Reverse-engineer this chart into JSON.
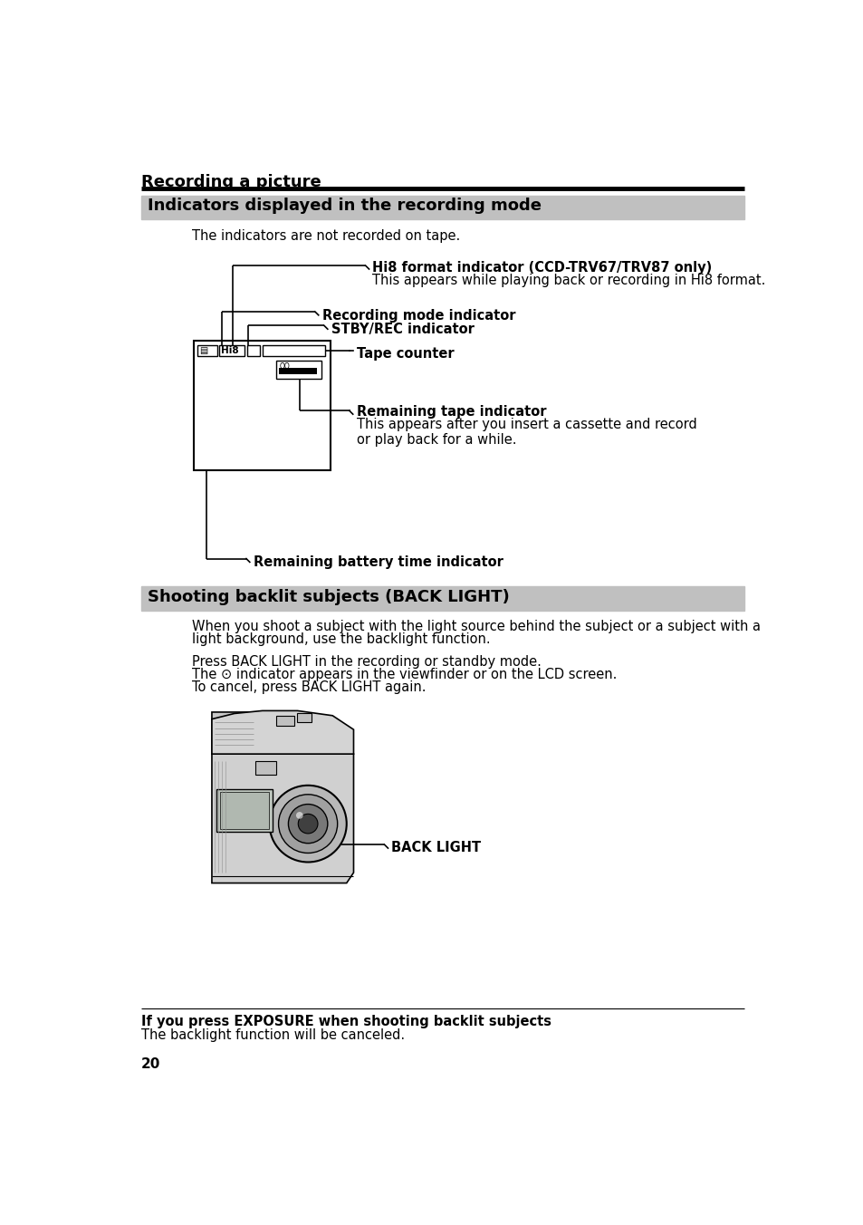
{
  "page_title": "Recording a picture",
  "section1_title": "Indicators displayed in the recording mode",
  "section1_subtitle": "The indicators are not recorded on tape.",
  "ind0_label": "Hi8 format indicator (CCD-TRV67/TRV87 only)",
  "ind0_sub": "This appears while playing back or recording in Hi8 format.",
  "ind1_label": "Recording mode indicator",
  "ind2_label": "STBY/REC indicator",
  "ind3_label": "Tape counter",
  "ind4_label": "Remaining tape indicator",
  "ind4_sub": "This appears after you insert a cassette and record\nor play back for a while.",
  "ind5_label": "Remaining battery time indicator",
  "section2_title": "Shooting backlit subjects (BACK LIGHT)",
  "s2b1": "When you shoot a subject with the light source behind the subject or a subject with a",
  "s2b2": "light background, use the backlight function.",
  "s2c1": "Press BACK LIGHT in the recording or standby mode.",
  "s2c2": "The ⊙ indicator appears in the viewfinder or on the LCD screen.",
  "s2c3": "To cancel, press BACK LIGHT again.",
  "back_light_label": "BACK LIGHT",
  "footer_bold": "If you press EXPOSURE when shooting backlit subjects",
  "footer_normal": "The backlight function will be canceled.",
  "page_number": "20",
  "bg_color": "#ffffff",
  "header_bg": "#c0c0c0"
}
